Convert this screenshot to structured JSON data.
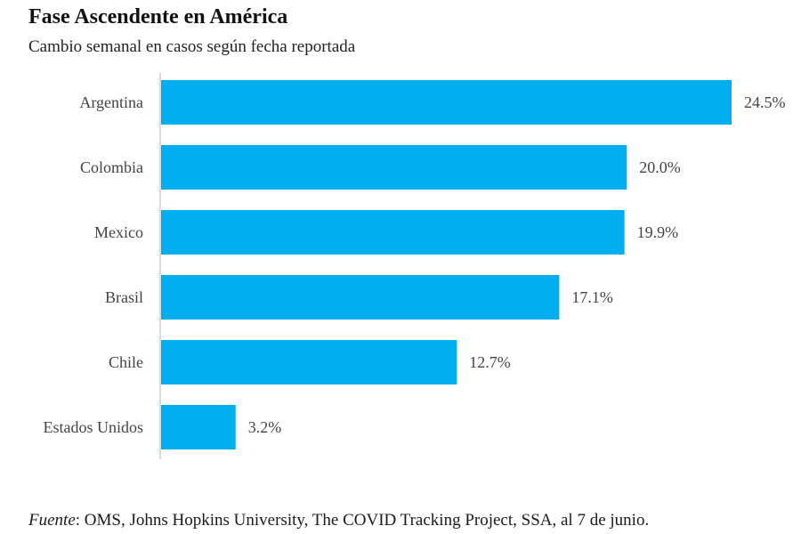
{
  "header": {
    "title": "Fase Ascendente en América",
    "subtitle": "Cambio semanal en casos según fecha reportada"
  },
  "footer": {
    "source_label": "Fuente",
    "source_text": ": OMS, Johns Hopkins University, The COVID Tracking Project, SSA, al 7 de junio."
  },
  "colors": {
    "bar": "#00AEEF",
    "axis": "#cfcfcf",
    "label": "#444444"
  },
  "chart_data": {
    "type": "bar",
    "orientation": "horizontal",
    "title": "Fase Ascendente en América",
    "subtitle": "Cambio semanal en casos según fecha reportada",
    "categories": [
      "Argentina",
      "Colombia",
      "Mexico",
      "Brasil",
      "Chile",
      "Estados Unidos"
    ],
    "values": [
      24.5,
      20.0,
      19.9,
      17.1,
      12.7,
      3.2
    ],
    "value_labels": [
      "24.5%",
      "20.0%",
      "19.9%",
      "17.1%",
      "12.7%",
      "3.2%"
    ],
    "unit": "%",
    "xlim": [
      0,
      24.5
    ],
    "grid": false,
    "legend": "none"
  }
}
